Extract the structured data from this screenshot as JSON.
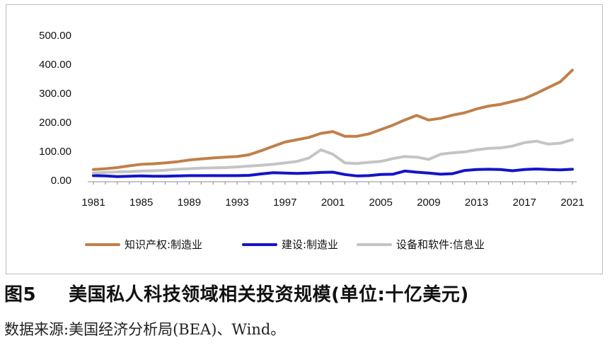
{
  "caption": {
    "figure_number": "图5",
    "title": "美国私人科技领域相关投资规模(单位:十亿美元)"
  },
  "source": "数据来源:美国经济分析局(BEA)、Wind。",
  "chart_data": {
    "type": "line",
    "title": "",
    "xlabel": "",
    "ylabel": "",
    "ylim": [
      0,
      500
    ],
    "yticks": [
      "0.00",
      "100.00",
      "200.00",
      "300.00",
      "400.00",
      "500.00"
    ],
    "xticks": [
      "1981",
      "1985",
      "1989",
      "1993",
      "1997",
      "2001",
      "2005",
      "2009",
      "2013",
      "2017",
      "2021"
    ],
    "x": [
      1981,
      1982,
      1983,
      1984,
      1985,
      1986,
      1987,
      1988,
      1989,
      1990,
      1991,
      1992,
      1993,
      1994,
      1995,
      1996,
      1997,
      1998,
      1999,
      2000,
      2001,
      2002,
      2003,
      2004,
      2005,
      2006,
      2007,
      2008,
      2009,
      2010,
      2011,
      2012,
      2013,
      2014,
      2015,
      2016,
      2017,
      2018,
      2019,
      2020,
      2021
    ],
    "legend_position": "bottom",
    "grid": false,
    "series": [
      {
        "name": "知识产权:制造业",
        "color": "#C0804A",
        "values": [
          37,
          40,
          44,
          50,
          55,
          57,
          60,
          64,
          70,
          74,
          77,
          80,
          82,
          88,
          102,
          117,
          132,
          140,
          148,
          162,
          168,
          152,
          152,
          160,
          175,
          190,
          208,
          224,
          208,
          214,
          225,
          233,
          246,
          256,
          262,
          272,
          282,
          300,
          320,
          340,
          380
        ]
      },
      {
        "name": "建设:制造业",
        "color": "#1414C8",
        "values": [
          16,
          15,
          13,
          14,
          15,
          14,
          14,
          15,
          16,
          16,
          16,
          16,
          16,
          17,
          22,
          26,
          25,
          24,
          25,
          27,
          28,
          20,
          15,
          16,
          20,
          21,
          32,
          28,
          25,
          21,
          23,
          34,
          37,
          38,
          37,
          33,
          37,
          39,
          37,
          36,
          38
        ]
      },
      {
        "name": "设备和软件:信息业",
        "color": "#C4C4C4",
        "values": [
          25,
          27,
          29,
          30,
          32,
          33,
          35,
          38,
          40,
          42,
          43,
          44,
          46,
          49,
          52,
          55,
          60,
          65,
          77,
          105,
          90,
          60,
          58,
          62,
          65,
          75,
          82,
          80,
          72,
          90,
          95,
          98,
          105,
          110,
          112,
          118,
          130,
          135,
          125,
          128,
          140
        ]
      }
    ]
  }
}
